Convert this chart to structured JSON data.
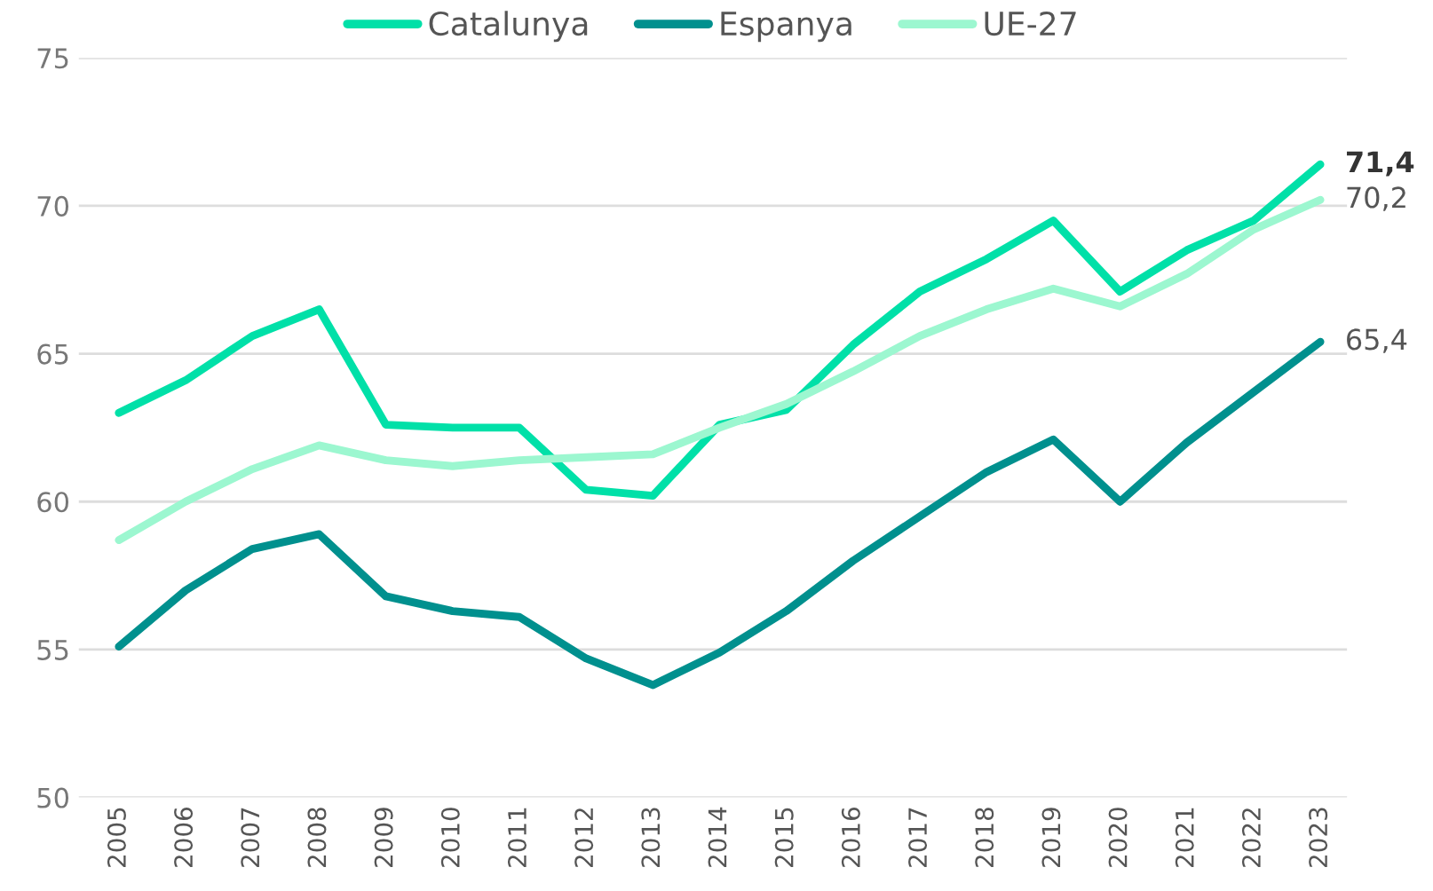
{
  "chart_data": {
    "type": "line",
    "categories": [
      "2005",
      "2006",
      "2007",
      "2008",
      "2009",
      "2010",
      "2011",
      "2012",
      "2013",
      "2014",
      "2015",
      "2016",
      "2017",
      "2018",
      "2019",
      "2020",
      "2021",
      "2022",
      "2023"
    ],
    "series": [
      {
        "name": "Catalunya",
        "color": "#00e0a8",
        "values": [
          63.0,
          64.1,
          65.6,
          66.5,
          62.6,
          62.5,
          62.5,
          60.4,
          60.2,
          62.6,
          63.1,
          65.3,
          67.1,
          68.2,
          69.5,
          67.1,
          68.5,
          69.5,
          71.4
        ],
        "value_labels": [
          null,
          null,
          null,
          null,
          null,
          null,
          null,
          null,
          null,
          null,
          null,
          null,
          null,
          null,
          null,
          null,
          null,
          null,
          "71,4"
        ]
      },
      {
        "name": "Espanya",
        "color": "#00908e",
        "values": [
          55.1,
          57.0,
          58.4,
          58.9,
          56.8,
          56.3,
          56.1,
          54.7,
          53.8,
          54.9,
          56.3,
          58.0,
          59.5,
          61.0,
          62.1,
          60.0,
          62.0,
          63.7,
          65.4
        ],
        "value_labels": [
          null,
          null,
          null,
          null,
          null,
          null,
          null,
          null,
          null,
          null,
          null,
          null,
          null,
          null,
          null,
          null,
          null,
          null,
          "65,4"
        ]
      },
      {
        "name": "UE-27",
        "color": "#9cf7d0",
        "values": [
          58.7,
          60.0,
          61.1,
          61.9,
          61.4,
          61.2,
          61.4,
          61.5,
          61.6,
          62.5,
          63.3,
          64.4,
          65.6,
          66.5,
          67.2,
          66.6,
          67.7,
          69.2,
          70.2
        ],
        "value_labels": [
          null,
          null,
          null,
          null,
          null,
          null,
          null,
          null,
          null,
          null,
          null,
          null,
          null,
          null,
          null,
          null,
          null,
          null,
          "70,2"
        ]
      }
    ],
    "ylim": [
      50,
      75
    ],
    "yticks": [
      50,
      55,
      60,
      65,
      70,
      75
    ],
    "grid": "y",
    "legend": "top",
    "marker": "none",
    "line_style": "solid"
  }
}
